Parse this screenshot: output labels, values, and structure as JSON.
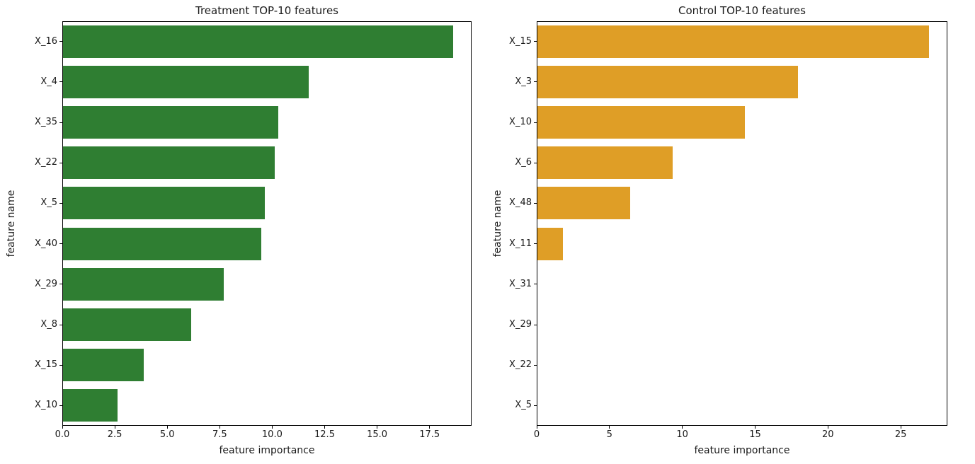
{
  "figure": {
    "background_color": "#ffffff",
    "text_color": "#1a1a1a"
  },
  "chart_data": [
    {
      "type": "bar",
      "orientation": "horizontal",
      "title": "Treatment TOP-10 features",
      "xlabel": "feature importance",
      "ylabel": "feature name",
      "categories": [
        "X_16",
        "X_4",
        "X_35",
        "X_22",
        "X_5",
        "X_40",
        "X_29",
        "X_8",
        "X_15",
        "X_10"
      ],
      "values": [
        18.6,
        11.7,
        10.25,
        10.1,
        9.6,
        9.45,
        7.65,
        6.1,
        3.85,
        2.6
      ],
      "xlim": [
        0,
        19.5
      ],
      "xticks": [
        0,
        2.5,
        5,
        7.5,
        10,
        12.5,
        15,
        17.5
      ],
      "xtick_labels": [
        "0.0",
        "2.5",
        "5.0",
        "7.5",
        "10.0",
        "12.5",
        "15.0",
        "17.5"
      ],
      "bar_color": "#2f7e32",
      "grid": false,
      "legend": null
    },
    {
      "type": "bar",
      "orientation": "horizontal",
      "title": "Control TOP-10 features",
      "xlabel": "feature importance",
      "ylabel": "feature name",
      "categories": [
        "X_15",
        "X_3",
        "X_10",
        "X_6",
        "X_48",
        "X_11",
        "X_31",
        "X_29",
        "X_22",
        "X_5"
      ],
      "values": [
        26.9,
        17.9,
        14.25,
        9.3,
        6.35,
        1.75,
        0,
        0,
        0,
        0
      ],
      "xlim": [
        0,
        28.2
      ],
      "xticks": [
        0,
        5,
        10,
        15,
        20,
        25
      ],
      "xtick_labels": [
        "0",
        "5",
        "10",
        "15",
        "20",
        "25"
      ],
      "bar_color": "#df9e26",
      "grid": false,
      "legend": null
    }
  ]
}
